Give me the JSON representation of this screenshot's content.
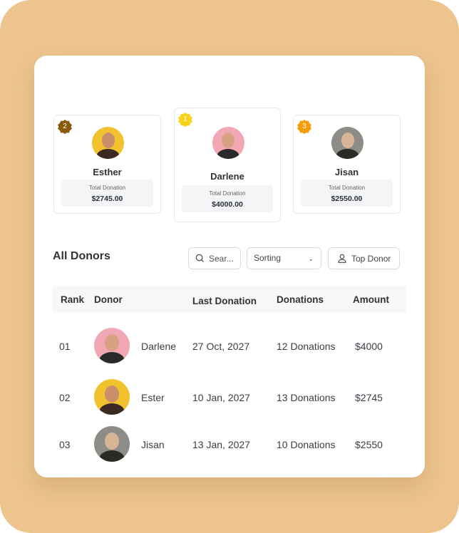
{
  "podium": [
    {
      "rank": "2",
      "name": "Esther",
      "total_label": "Total Donation",
      "total": "$2745.00",
      "badge_color": "#8a5a0b",
      "avatar_bg": "#f2c12e",
      "skin": "#c98f6a",
      "shirt": "#3a2a22"
    },
    {
      "rank": "1",
      "name": "Darlene",
      "total_label": "Total Donation",
      "total": "$4000.00",
      "badge_color": "#f7d21b",
      "avatar_bg": "#f2a7b5",
      "skin": "#d9a184",
      "shirt": "#2a2a2a"
    },
    {
      "rank": "3",
      "name": "Jisan",
      "total_label": "Total Donation",
      "total": "$2550.00",
      "badge_color": "#f59e0b",
      "avatar_bg": "#8d8c87",
      "skin": "#d8b497",
      "shirt": "#2b2b25"
    }
  ],
  "section": {
    "title": "All Donors",
    "search_placeholder": "Sear...",
    "sorting": "Sorting",
    "top_donor": "Top Donor"
  },
  "table": {
    "headers": [
      "Rank",
      "Donor",
      "Last Donation",
      "Donations",
      "Amount"
    ],
    "rows": [
      {
        "rank": "01",
        "name": "Darlene",
        "date": "27 Oct, 2027",
        "donations": "12 Donations",
        "amount": "$4000",
        "avatar_bg": "#f2a7b5",
        "skin": "#d9a184",
        "shirt": "#2a2a2a"
      },
      {
        "rank": "02",
        "name": "Ester",
        "date": "10 Jan, 2027",
        "donations": "13 Donations",
        "amount": "$2745",
        "avatar_bg": "#f2c12e",
        "skin": "#c98f6a",
        "shirt": "#3a2a22"
      },
      {
        "rank": "03",
        "name": "Jisan",
        "date": "13 Jan, 2027",
        "donations": "10 Donations",
        "amount": "$2550",
        "avatar_bg": "#8d8c87",
        "skin": "#d8b497",
        "shirt": "#2b2b25"
      }
    ]
  }
}
